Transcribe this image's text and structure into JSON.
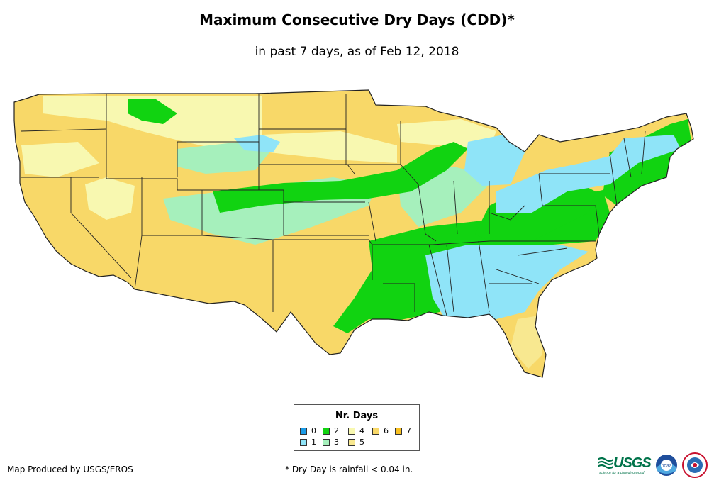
{
  "title": "Maximum Consecutive Dry Days (CDD)*",
  "subtitle": "in past 7 days, as of Feb 12, 2018",
  "legend": {
    "title": "Nr. Days",
    "items": [
      {
        "label": "0",
        "color": "#1a9ae6"
      },
      {
        "label": "1",
        "color": "#8fe4f8"
      },
      {
        "label": "2",
        "color": "#11d311"
      },
      {
        "label": "3",
        "color": "#a6f0bc"
      },
      {
        "label": "4",
        "color": "#f8f8b0"
      },
      {
        "label": "5",
        "color": "#f8e890"
      },
      {
        "label": "6",
        "color": "#f8d868"
      },
      {
        "label": "7",
        "color": "#f8c020"
      }
    ]
  },
  "credit": "Map Produced by USGS/EROS",
  "footnote": "* Dry Day is rainfall < 0.04 in.",
  "logos": {
    "usgs_text": "USGS",
    "usgs_tagline": "science for a changing world",
    "noaa_text": "noaa"
  }
}
